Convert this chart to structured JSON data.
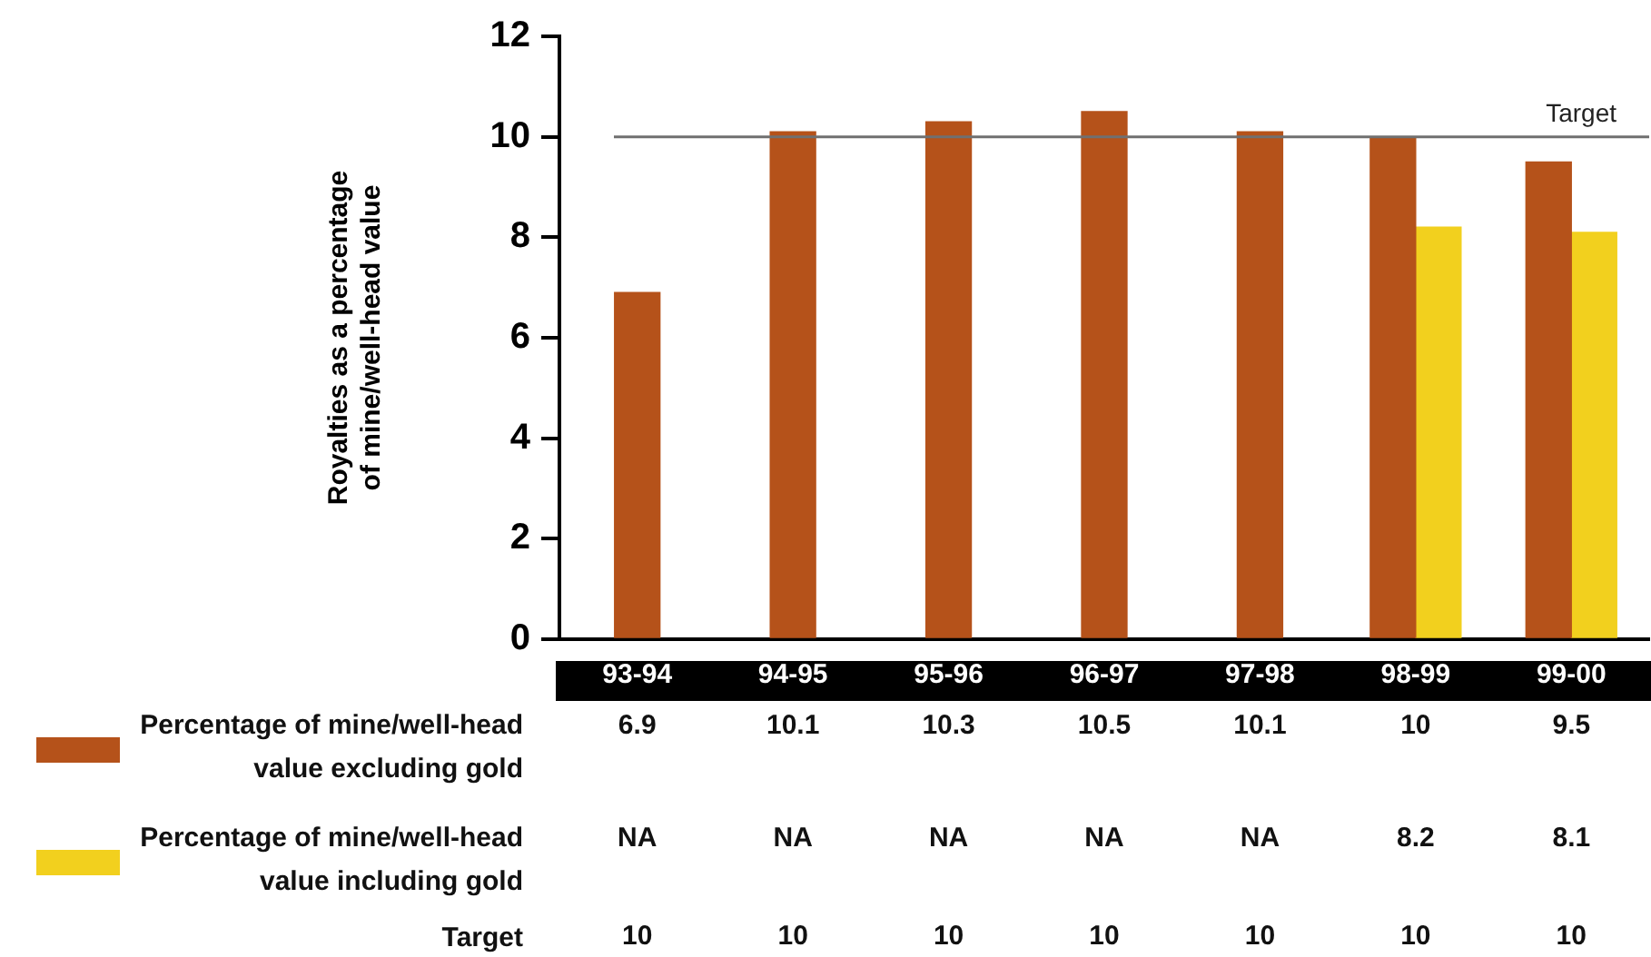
{
  "chart_data": {
    "type": "bar",
    "ylabel": "Royalties as a percentage\nof mine/well-head value",
    "categories": [
      "93-94",
      "94-95",
      "95-96",
      "96-97",
      "97-98",
      "98-99",
      "99-00"
    ],
    "series": [
      {
        "name": "Percentage of mine/well-head value excluding gold",
        "color": "#b5521a",
        "values": [
          6.9,
          10.1,
          10.3,
          10.5,
          10.1,
          10,
          9.5
        ],
        "value_labels": [
          "6.9",
          "10.1",
          "10.3",
          "10.5",
          "10.1",
          "10",
          "9.5"
        ]
      },
      {
        "name": "Percentage of mine/well-head value including gold",
        "color": "#f2d01e",
        "values": [
          null,
          null,
          null,
          null,
          null,
          8.2,
          8.1
        ],
        "value_labels": [
          "NA",
          "NA",
          "NA",
          "NA",
          "NA",
          "8.2",
          "8.1"
        ]
      }
    ],
    "ylim": [
      0,
      12
    ],
    "yticks": [
      0,
      2,
      4,
      6,
      8,
      10,
      12
    ],
    "grid": false,
    "legend": "bottom left",
    "annotations": [
      "10",
      "10",
      "10",
      "10",
      "10",
      "10",
      "10"
    ],
    "ref_lines": [
      {
        "axis": "y",
        "value": 10,
        "label": "Target",
        "color": "#707070"
      }
    ]
  }
}
